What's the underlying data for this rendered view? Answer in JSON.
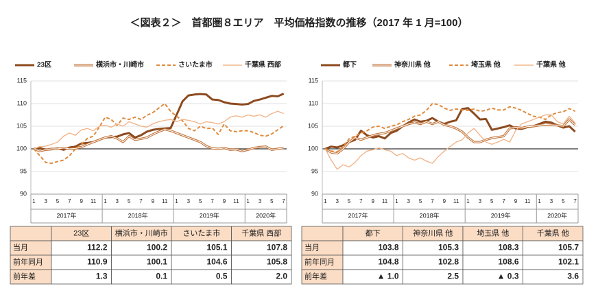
{
  "title": "＜図表２＞　首都圏８エリア　平均価格指数の推移（2017 年 1 月=100）",
  "chart_data": [
    {
      "type": "line",
      "categories": [
        "1",
        null,
        "3",
        null,
        "5",
        null,
        "7",
        null,
        "9",
        null,
        "11",
        null,
        "1",
        null,
        "3",
        null,
        "5",
        null,
        "7",
        null,
        "9",
        null,
        "11",
        null,
        "1",
        null,
        "3",
        null,
        "5",
        null,
        "7",
        null,
        "9",
        null,
        "11",
        null,
        "1",
        null,
        "3",
        null,
        "5",
        null,
        "7"
      ],
      "year_labels": [
        "2017年",
        "2018年",
        "2019年",
        "2020年"
      ],
      "ylim": [
        90,
        115
      ],
      "yticks": [
        90,
        95,
        100,
        105,
        110,
        115
      ],
      "grid": true,
      "baseline": 100,
      "series": [
        {
          "name": "23区",
          "color": "#8c4a1e",
          "style": "bold",
          "values": [
            100,
            100.2,
            99.8,
            99.9,
            100.1,
            99.8,
            100.3,
            100.5,
            101.2,
            101.3,
            101.5,
            102.0,
            102.5,
            102.6,
            102.7,
            103.2,
            103.5,
            102.5,
            103.0,
            103.8,
            104.2,
            104.4,
            104.5,
            104.6,
            107.5,
            110.5,
            111.8,
            112.0,
            112.1,
            112.0,
            110.9,
            110.8,
            110.3,
            110.0,
            109.9,
            109.8,
            109.9,
            110.6,
            110.9,
            111.3,
            111.7,
            111.6,
            112.2
          ]
        },
        {
          "name": "横浜市・川崎市",
          "color": "#c0733a",
          "style": "double",
          "values": [
            100,
            99.5,
            99.8,
            100,
            100,
            100.2,
            100,
            100.1,
            100.4,
            101,
            101.5,
            102,
            102.5,
            102.8,
            102.3,
            101.5,
            102.8,
            102.0,
            102.2,
            102.5,
            103.2,
            103.8,
            104.3,
            104.0,
            103.5,
            103.0,
            102.5,
            102.0,
            101.5,
            100.6,
            100.1,
            100.0,
            100.2,
            99.8,
            99.9,
            99.5,
            99.8,
            100.2,
            100.4,
            100.5,
            99.8,
            100.0,
            100.2
          ]
        },
        {
          "name": "さいたま市",
          "color": "#e08a3c",
          "style": "dashed",
          "values": [
            100,
            98.5,
            97.0,
            96.8,
            97.2,
            97.5,
            98.5,
            100,
            101,
            102.3,
            102.8,
            104.8,
            107.0,
            106.5,
            105.2,
            106.8,
            106.5,
            107.0,
            106.5,
            107.4,
            108.0,
            109.0,
            110.0,
            108.3,
            107.2,
            106.2,
            104.5,
            104.0,
            105.0,
            104.5,
            104.6,
            103.2,
            105.5,
            104.0,
            103.8,
            104.0,
            104.0,
            103.6,
            103.0,
            102.8,
            103.3,
            104.2,
            105.1
          ]
        },
        {
          "name": "千葉県 西部",
          "color": "#f2b58a",
          "style": "thin",
          "values": [
            100,
            100.5,
            100.6,
            101.0,
            101.5,
            102.8,
            103.5,
            103.0,
            104.2,
            104.5,
            104.0,
            105.0,
            105.2,
            104.8,
            105.5,
            105.0,
            106.0,
            105.5,
            105.0,
            104.8,
            105.5,
            106.0,
            106.3,
            106.5,
            106.0,
            106.5,
            106.3,
            106.0,
            105.5,
            106.0,
            105.8,
            105.5,
            106.0,
            107.0,
            107.3,
            107.0,
            107.5,
            107.2,
            107.5,
            107.0,
            107.8,
            108.3,
            107.8
          ]
        }
      ]
    },
    {
      "type": "line",
      "categories": [
        "1",
        null,
        "3",
        null,
        "5",
        null,
        "7",
        null,
        "9",
        null,
        "11",
        null,
        "1",
        null,
        "3",
        null,
        "5",
        null,
        "7",
        null,
        "9",
        null,
        "11",
        null,
        "1",
        null,
        "3",
        null,
        "5",
        null,
        "7",
        null,
        "9",
        null,
        "11",
        null,
        "1",
        null,
        "3",
        null,
        "5",
        null,
        "7"
      ],
      "year_labels": [
        "2017年",
        "2018年",
        "2019年",
        "2020年"
      ],
      "ylim": [
        90,
        115
      ],
      "yticks": [
        90,
        95,
        100,
        105,
        110,
        115
      ],
      "grid": true,
      "baseline": 100,
      "series": [
        {
          "name": "都下",
          "color": "#8c4a1e",
          "style": "bold",
          "values": [
            100,
            100.5,
            100.3,
            100.8,
            101.5,
            102,
            104,
            103,
            102.5,
            102.8,
            102.3,
            103.5,
            104,
            105,
            105.8,
            106.5,
            106,
            106.2,
            106.8,
            106,
            105.5,
            106,
            106.3,
            108.8,
            109.0,
            107.8,
            106.5,
            106.6,
            104.2,
            104.5,
            104.8,
            105.2,
            104.5,
            104.4,
            104.8,
            105.0,
            105.5,
            106.0,
            105.8,
            105.2,
            104.7,
            105.0,
            103.8
          ]
        },
        {
          "name": "神奈川県 他",
          "color": "#c0733a",
          "style": "double",
          "values": [
            100,
            99.2,
            99.0,
            100,
            101.5,
            102.5,
            102.0,
            102.5,
            103.0,
            103.3,
            103.5,
            104.0,
            104.5,
            105.0,
            105.5,
            105.8,
            105.5,
            106.0,
            105.5,
            106.0,
            105.3,
            105.0,
            104.5,
            103.8,
            102.5,
            101.5,
            101.5,
            102.0,
            102.4,
            102.6,
            102.8,
            104.5,
            104.8,
            104.6,
            104.9,
            105.0,
            105.2,
            105.4,
            105.3,
            105.2,
            105.0,
            106.5,
            105.3
          ]
        },
        {
          "name": "埼玉県 他",
          "color": "#e08a3c",
          "style": "dashed",
          "values": [
            100,
            99.5,
            99.3,
            100.5,
            102.2,
            102.8,
            103.5,
            104.0,
            104.8,
            105.0,
            104.5,
            105.0,
            105.3,
            106.0,
            106.5,
            107.2,
            107.5,
            108.5,
            110.0,
            109.8,
            109.0,
            108.5,
            108.8,
            108.6,
            108.5,
            108.8,
            108.3,
            108.5,
            109.0,
            108.6,
            108.6,
            109.3,
            109.0,
            108.5,
            107.8,
            107.2,
            107.0,
            106.5,
            107.5,
            108.0,
            108.2,
            108.9,
            108.3
          ]
        },
        {
          "name": "千葉県 他",
          "color": "#f2b58a",
          "style": "thin",
          "values": [
            100,
            97.5,
            95.5,
            96.5,
            96.0,
            97.0,
            98.5,
            99.5,
            99.8,
            100.2,
            99.8,
            99.5,
            98.5,
            99.0,
            98.0,
            97.5,
            98.0,
            97.3,
            96.8,
            98.3,
            99.5,
            100.5,
            101.5,
            102.0,
            103.5,
            104.5,
            103.0,
            101.5,
            101.0,
            101.5,
            102.1,
            101.5,
            104.0,
            105.5,
            106.0,
            106.5,
            107.0,
            107.5,
            107.5,
            106.0,
            105.5,
            107.2,
            105.7
          ]
        }
      ]
    }
  ],
  "tables": [
    {
      "columns": [
        "23区",
        "横浜市・川崎市",
        "さいたま市",
        "千葉県 西部"
      ],
      "rows": [
        {
          "label": "当月",
          "cells": [
            "112.2",
            "100.2",
            "105.1",
            "107.8"
          ]
        },
        {
          "label": "前年同月",
          "cells": [
            "110.9",
            "100.1",
            "104.6",
            "105.8"
          ]
        },
        {
          "label": "前年差",
          "cells": [
            "1.3",
            "0.1",
            "0.5",
            "2.0"
          ]
        }
      ]
    },
    {
      "columns": [
        "都下",
        "神奈川県 他",
        "埼玉県 他",
        "千葉県 他"
      ],
      "rows": [
        {
          "label": "当月",
          "cells": [
            "103.8",
            "105.3",
            "108.3",
            "105.7"
          ]
        },
        {
          "label": "前年同月",
          "cells": [
            "104.8",
            "102.8",
            "108.6",
            "102.1"
          ]
        },
        {
          "label": "前年差",
          "cells": [
            "▲ 1.0",
            "2.5",
            "▲ 0.3",
            "3.6"
          ]
        }
      ]
    }
  ]
}
